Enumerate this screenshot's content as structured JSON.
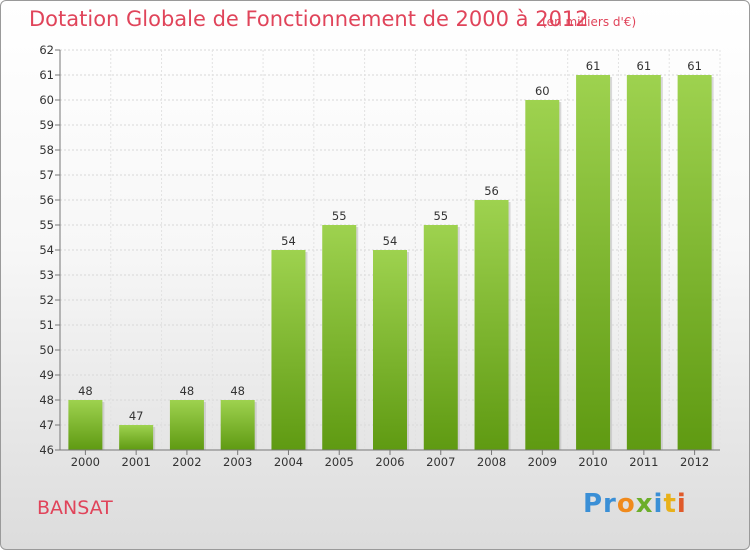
{
  "title": "Dotation Globale de Fonctionnement de 2000 à 2012",
  "subtitle": "(en milliers d'€)",
  "commune": "BANSAT",
  "brand": [
    "Pr",
    "o",
    "x",
    "i",
    "t",
    "i"
  ],
  "colors": {
    "bar_top": "#9ed24f",
    "bar_bottom": "#5f9a12",
    "title": "#e0445a"
  },
  "chart_data": {
    "type": "bar",
    "title": "Dotation Globale de Fonctionnement de 2000 à 2012",
    "subtitle": "(en milliers d'€)",
    "categories": [
      "2000",
      "2001",
      "2002",
      "2003",
      "2004",
      "2005",
      "2006",
      "2007",
      "2008",
      "2009",
      "2010",
      "2011",
      "2012"
    ],
    "values": [
      48,
      47,
      48,
      48,
      54,
      55,
      54,
      55,
      56,
      60,
      61,
      61,
      61
    ],
    "ylim": [
      46,
      62
    ],
    "yticks": [
      46,
      47,
      48,
      49,
      50,
      51,
      52,
      53,
      54,
      55,
      56,
      57,
      58,
      59,
      60,
      61,
      62
    ],
    "grid": true,
    "legend": "none"
  }
}
